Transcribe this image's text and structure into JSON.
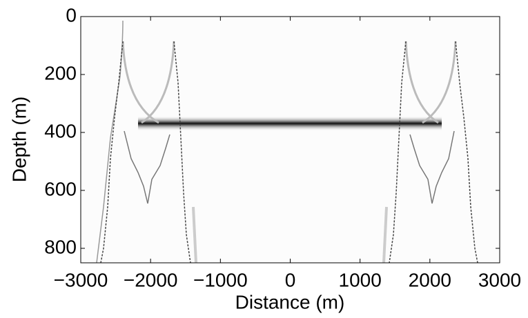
{
  "chart_data": {
    "type": "image",
    "x_label": "Distance (m)",
    "y_label": "Depth (m)",
    "xlim": [
      -3000,
      3000
    ],
    "ylim": [
      0,
      850
    ],
    "y_inverted": true,
    "xticks": [
      {
        "value": -3000,
        "label": "−3000"
      },
      {
        "value": -2000,
        "label": "−2000"
      },
      {
        "value": -1000,
        "label": "−1000"
      },
      0,
      1000,
      2000,
      3000
    ],
    "yticks": [
      0,
      200,
      400,
      600,
      800
    ]
  }
}
